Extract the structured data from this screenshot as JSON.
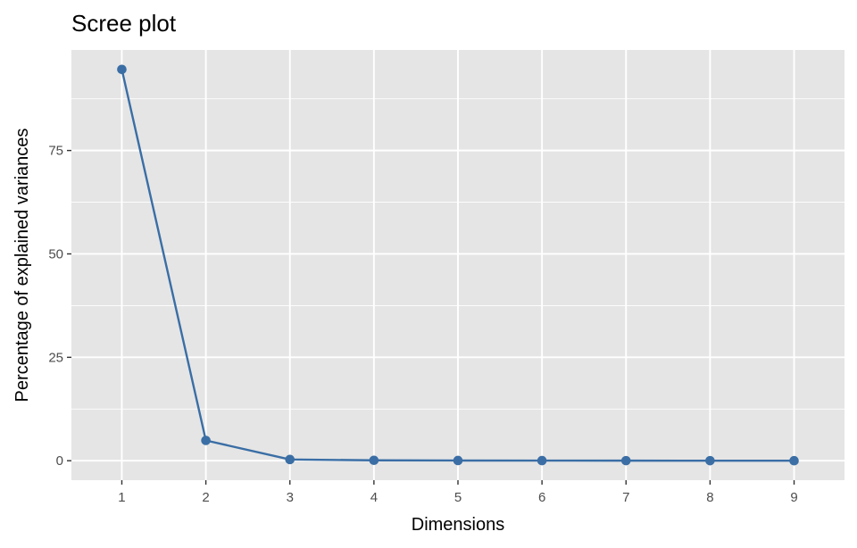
{
  "chart_data": {
    "type": "line",
    "title": "Scree plot",
    "xlabel": "Dimensions",
    "ylabel": "Percentage of explained variances",
    "categories": [
      "1",
      "2",
      "3",
      "4",
      "5",
      "6",
      "7",
      "8",
      "9"
    ],
    "series": [
      {
        "values": [
          94.6,
          4.9,
          0.3,
          0.1,
          0.05,
          0.03,
          0.02,
          0.01,
          0.0
        ]
      }
    ],
    "yticks": [
      0,
      25,
      50,
      75
    ],
    "ylim": [
      -4.7,
      99.3
    ],
    "grid": true,
    "colors": {
      "line": "#3a6ea5",
      "panel_background": "#e5e5e5",
      "grid": "#ffffff"
    }
  }
}
